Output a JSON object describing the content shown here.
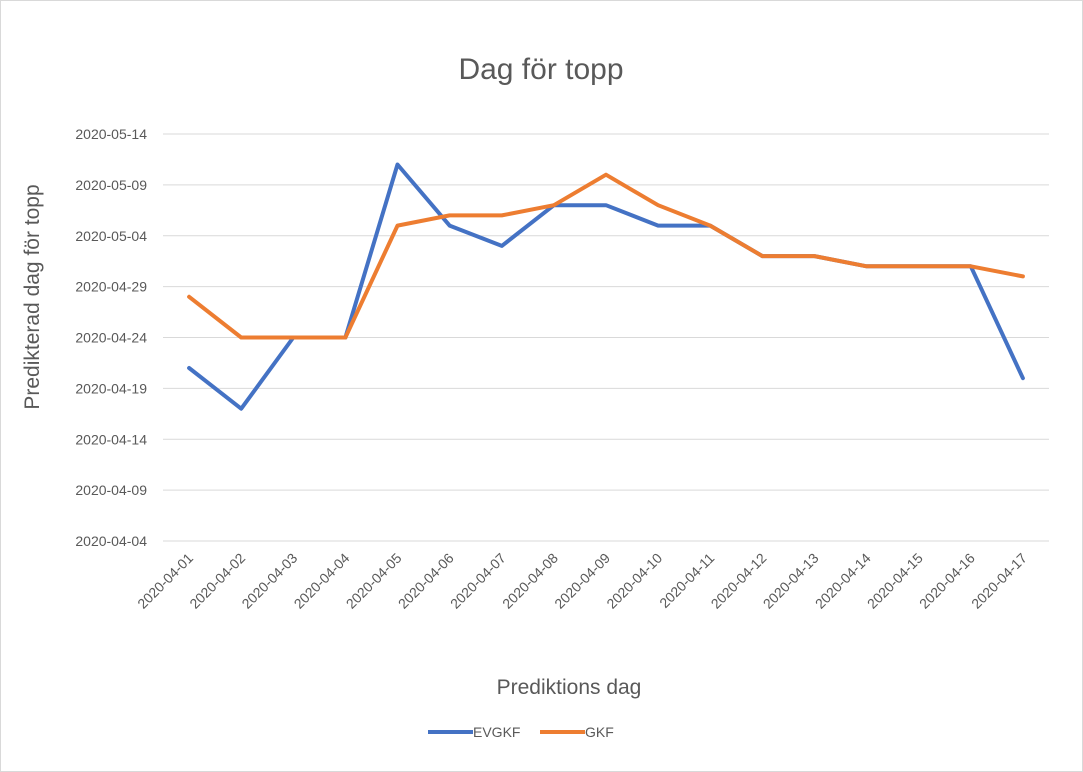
{
  "chart_data": {
    "type": "line",
    "title": "Dag för topp",
    "xlabel": "Prediktions dag",
    "ylabel": "Predikterad dag för topp",
    "categories": [
      "2020-04-01",
      "2020-04-02",
      "2020-04-03",
      "2020-04-04",
      "2020-04-05",
      "2020-04-06",
      "2020-04-07",
      "2020-04-08",
      "2020-04-09",
      "2020-04-10",
      "2020-04-11",
      "2020-04-12",
      "2020-04-13",
      "2020-04-14",
      "2020-04-15",
      "2020-04-16",
      "2020-04-17"
    ],
    "y_ticks": [
      "2020-04-04",
      "2020-04-09",
      "2020-04-14",
      "2020-04-19",
      "2020-04-24",
      "2020-04-29",
      "2020-05-04",
      "2020-05-09",
      "2020-05-14"
    ],
    "ylim": [
      "2020-04-04",
      "2020-05-14"
    ],
    "grid": true,
    "legend_position": "bottom",
    "series": [
      {
        "name": "EVGKF",
        "color": "#4472c4",
        "values": [
          "2020-04-21",
          "2020-04-17",
          "2020-04-24",
          "2020-04-24",
          "2020-05-11",
          "2020-05-05",
          "2020-05-03",
          "2020-05-07",
          "2020-05-07",
          "2020-05-05",
          "2020-05-05",
          "2020-05-02",
          "2020-05-02",
          "2020-05-01",
          "2020-05-01",
          "2020-05-01",
          "2020-04-20"
        ]
      },
      {
        "name": "GKF",
        "color": "#ed7d31",
        "values": [
          "2020-04-28",
          "2020-04-24",
          "2020-04-24",
          "2020-04-24",
          "2020-05-05",
          "2020-05-06",
          "2020-05-06",
          "2020-05-07",
          "2020-05-10",
          "2020-05-07",
          "2020-05-05",
          "2020-05-02",
          "2020-05-02",
          "2020-05-01",
          "2020-05-01",
          "2020-05-01",
          "2020-04-30"
        ]
      }
    ]
  }
}
